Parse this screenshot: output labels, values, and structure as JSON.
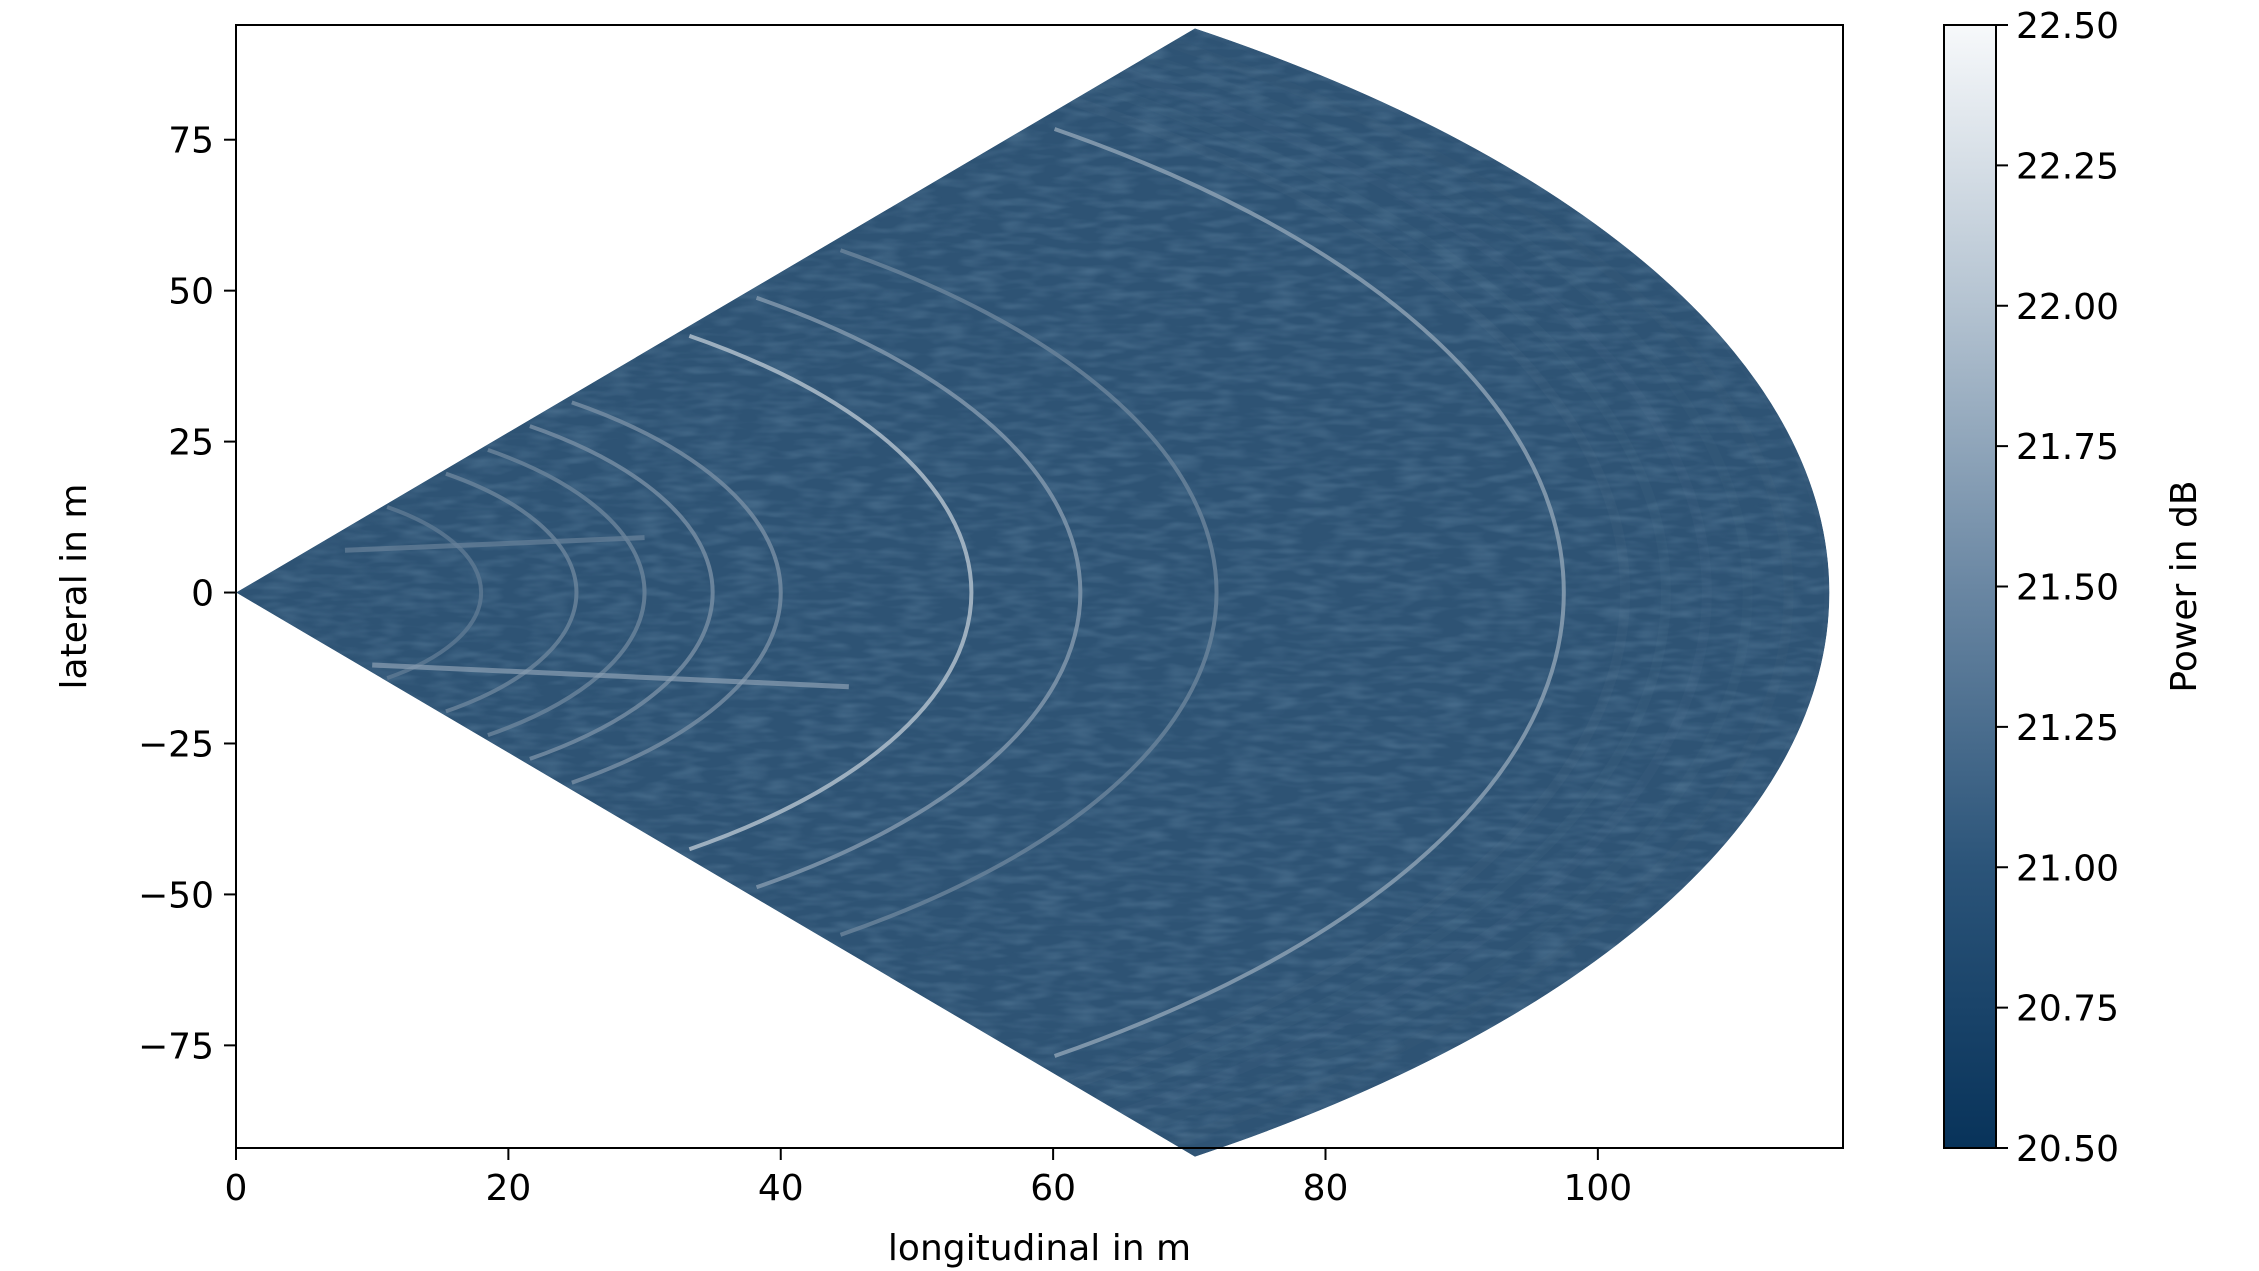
{
  "chart_data": [
    {
      "type": "heatmap",
      "subtype": "polar-sector radar power map",
      "title": "",
      "xlabel": "longitudinal in m",
      "ylabel": "lateral in m",
      "xlim": [
        0,
        118
      ],
      "ylim": [
        -92,
        94
      ],
      "x_ticks": [
        0,
        20,
        40,
        60,
        80,
        100
      ],
      "x_tick_labels": [
        "0",
        "20",
        "40",
        "60",
        "80",
        "100"
      ],
      "y_ticks": [
        75,
        50,
        25,
        0,
        -25,
        -50,
        -75
      ],
      "y_tick_labels": [
        "75",
        "50",
        "25",
        "0",
        "−25",
        "−50",
        "−75"
      ],
      "grid": false,
      "sector": {
        "origin": [
          0,
          0
        ],
        "max_range_m": 117,
        "half_angle_deg": 53
      },
      "bright_arcs": [
        {
          "range_m": 54,
          "intensity_db": 21.9
        },
        {
          "range_m": 62,
          "intensity_db": 21.5
        },
        {
          "range_m": 72,
          "intensity_db": 21.3
        },
        {
          "range_m": 97.5,
          "intensity_db": 21.6
        },
        {
          "range_m": 40,
          "intensity_db": 21.4
        },
        {
          "range_m": 35,
          "intensity_db": 21.4
        },
        {
          "range_m": 30,
          "intensity_db": 21.3
        },
        {
          "range_m": 25,
          "intensity_db": 21.3
        },
        {
          "range_m": 18,
          "intensity_db": 21.2
        }
      ],
      "bright_streaks": [
        {
          "lateral_m": -12,
          "from_m": 10,
          "to_m": 45,
          "intensity_db": 21.6
        },
        {
          "lateral_m": 7,
          "from_m": 8,
          "to_m": 30,
          "intensity_db": 21.3
        }
      ],
      "colorbar": {
        "label": "Power in dB",
        "min": 20.5,
        "max": 22.5,
        "ticks": [
          22.5,
          22.25,
          22.0,
          21.75,
          21.5,
          21.25,
          21.0,
          20.75,
          20.5
        ],
        "tick_labels": [
          "22.50",
          "22.25",
          "22.00",
          "21.75",
          "21.50",
          "21.25",
          "21.00",
          "20.75",
          "20.50"
        ],
        "color_low": "#08335a",
        "color_high": "#f7f9fb"
      }
    }
  ]
}
